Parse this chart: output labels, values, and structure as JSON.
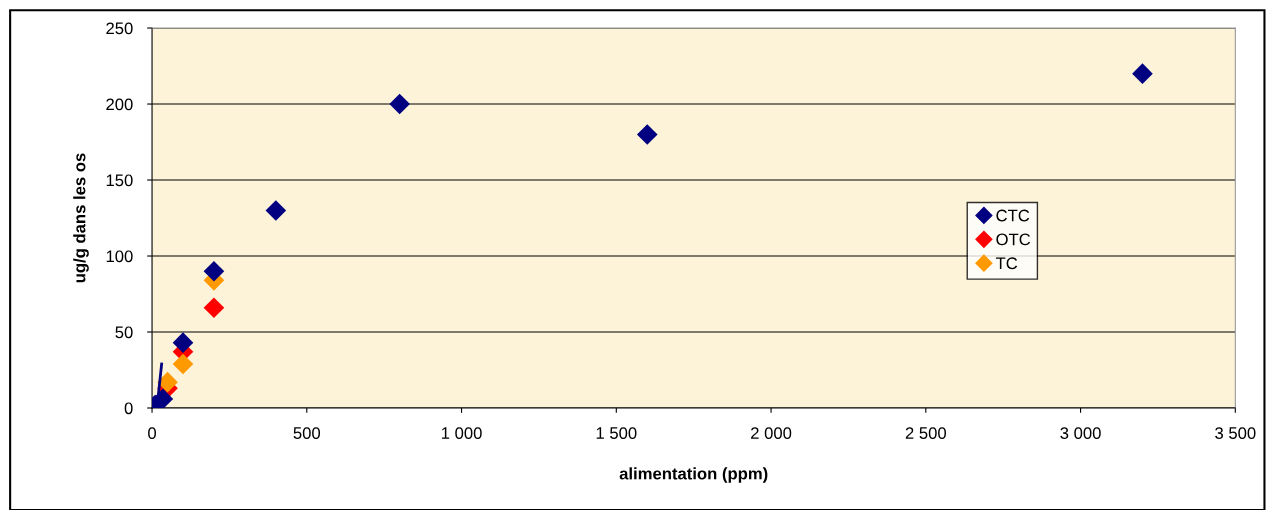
{
  "chart_data": {
    "type": "scatter",
    "xlabel": "alimentation (ppm)",
    "ylabel": "ug/g dans les os",
    "xlim": [
      0,
      3500
    ],
    "xticks": [
      0,
      500,
      {
        "value": 1000,
        "label": "1 000"
      },
      {
        "value": 1500,
        "label": "1 500"
      },
      {
        "value": 2000,
        "label": "2 000"
      },
      {
        "value": 2500,
        "label": "2 500"
      },
      {
        "value": 3000,
        "label": "3 000"
      },
      {
        "value": 3500,
        "label": "3 500"
      }
    ],
    "ylim": [
      0,
      250
    ],
    "yticks": [
      0,
      50,
      100,
      150,
      200,
      250
    ],
    "grid": "y",
    "legend": "right",
    "marker": "diamond",
    "series": [
      {
        "name": "CTC",
        "color": "#000080",
        "x": [
          10,
          35,
          100,
          200,
          400,
          800,
          1600,
          3200
        ],
        "values": [
          2,
          6,
          43,
          90,
          130,
          200,
          180,
          220
        ]
      },
      {
        "name": "OTC",
        "color": "#ff0000",
        "x": [
          50,
          100,
          200
        ],
        "values": [
          13,
          37,
          66
        ]
      },
      {
        "name": "TC",
        "color": "#ff9900",
        "x": [
          50,
          100,
          200
        ],
        "values": [
          17,
          29,
          84
        ]
      },
      {
        "type": "line",
        "marker": "none",
        "color": "#000080",
        "x": [
          19,
          31
        ],
        "values": [
          6,
          29
        ]
      }
    ]
  }
}
